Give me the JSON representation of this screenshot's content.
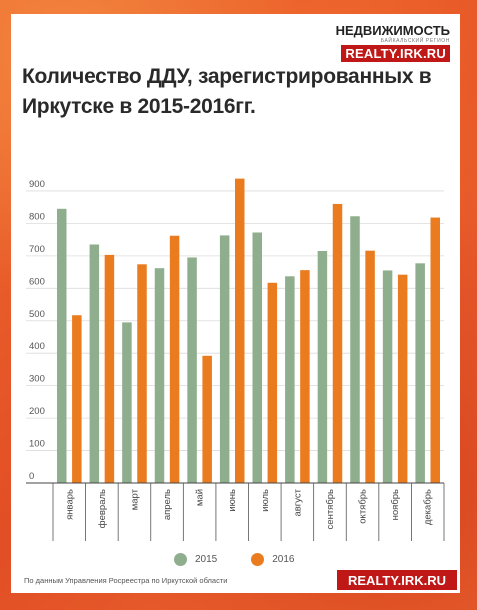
{
  "brand": {
    "name": "НЕДВИЖИМОСТЬ",
    "tagline": "БАЙКАЛЬСКИЙ РЕГИОН",
    "site": "REALTY.IRK.RU"
  },
  "footer": {
    "source": "По данным Управления Росреестра по Иркутской области",
    "site": "REALTY.IRK.RU"
  },
  "colors": {
    "series_2015": "#8fae8d",
    "series_2016": "#ea7c1f",
    "brand_red": "#c01717"
  },
  "chart_data": {
    "type": "bar",
    "title": "Количество ДДУ, зарегистрированных в Иркутске в 2015-2016гг.",
    "categories": [
      "январь",
      "февраль",
      "март",
      "апрель",
      "май",
      "июнь",
      "июль",
      "август",
      "сентябрь",
      "октябрь",
      "ноябрь",
      "декабрь"
    ],
    "series": [
      {
        "name": "2015",
        "values": [
          845,
          735,
          495,
          662,
          695,
          763,
          772,
          637,
          715,
          822,
          655,
          677
        ]
      },
      {
        "name": "2016",
        "values": [
          517,
          703,
          674,
          762,
          392,
          938,
          617,
          656,
          860,
          716,
          642,
          818
        ]
      }
    ],
    "yticks": [
      0,
      100,
      200,
      300,
      400,
      500,
      600,
      700,
      800,
      900
    ],
    "ylim": [
      0,
      960
    ],
    "grid": true,
    "legend": "bottom"
  }
}
